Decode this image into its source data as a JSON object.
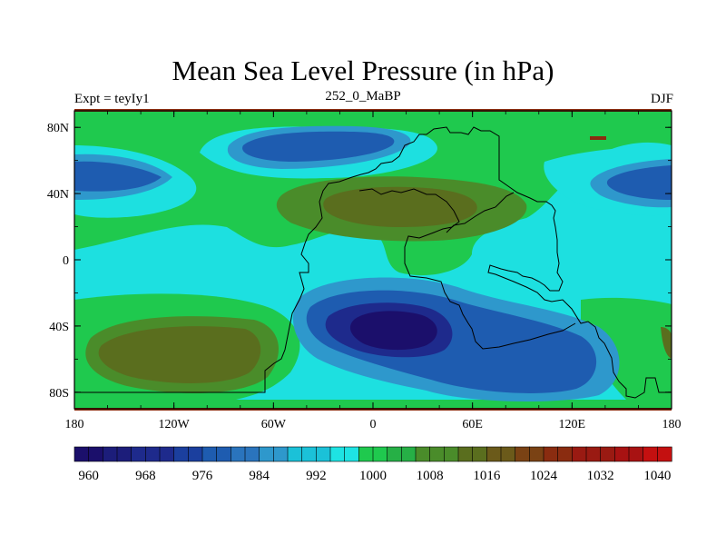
{
  "chart_data": {
    "type": "heatmap",
    "title": "Mean Sea Level Pressure (in hPa)",
    "subtitle_left": "Expt = teyIy1",
    "subtitle_center": "252_0_MaBP",
    "subtitle_right": "DJF",
    "xlabel": "",
    "ylabel": "",
    "xlim": [
      -180,
      180
    ],
    "ylim": [
      -90,
      90
    ],
    "x_ticks": [
      {
        "value": -180,
        "label": "180"
      },
      {
        "value": -120,
        "label": "120W"
      },
      {
        "value": -60,
        "label": "60W"
      },
      {
        "value": 0,
        "label": "0"
      },
      {
        "value": 60,
        "label": "60E"
      },
      {
        "value": 120,
        "label": "120E"
      },
      {
        "value": 180,
        "label": "180"
      }
    ],
    "y_ticks": [
      {
        "value": 80,
        "label": "80N"
      },
      {
        "value": 40,
        "label": "40N"
      },
      {
        "value": 0,
        "label": "0"
      },
      {
        "value": -40,
        "label": "40S"
      },
      {
        "value": -80,
        "label": "80S"
      }
    ],
    "colorbar": {
      "levels": [
        958,
        960,
        962,
        964,
        966,
        968,
        970,
        972,
        974,
        976,
        978,
        980,
        982,
        984,
        986,
        988,
        990,
        992,
        994,
        996,
        998,
        1000,
        1002,
        1004,
        1006,
        1008,
        1010,
        1012,
        1014,
        1016,
        1018,
        1020,
        1022,
        1024,
        1026,
        1028,
        1030,
        1032,
        1034,
        1036,
        1038,
        1040,
        1042
      ],
      "colors": [
        "#1b0f6b",
        "#1c1d7a",
        "#1e2a8c",
        "#1b3f9e",
        "#1e5cb0",
        "#2a74bd",
        "#2e98cc",
        "#1bc1d8",
        "#1ee3e3",
        "#1fc94e",
        "#26b046",
        "#4a8c2a",
        "#5a6e1e",
        "#6b5a1a",
        "#7a4214",
        "#8a2c10",
        "#9a1a12",
        "#a81212",
        "#c41010"
      ],
      "labels": [
        {
          "value": 960,
          "label": "960"
        },
        {
          "value": 968,
          "label": "968"
        },
        {
          "value": 976,
          "label": "976"
        },
        {
          "value": 984,
          "label": "984"
        },
        {
          "value": 992,
          "label": "992"
        },
        {
          "value": 1000,
          "label": "1000"
        },
        {
          "value": 1008,
          "label": "1008"
        },
        {
          "value": 1016,
          "label": "1016"
        },
        {
          "value": 1024,
          "label": "1024"
        },
        {
          "value": 1032,
          "label": "1032"
        },
        {
          "value": 1040,
          "label": "1040"
        }
      ]
    },
    "pressure_features": [
      {
        "name": "north-pacific-low",
        "lon": -168,
        "lat": 40,
        "value": 988
      },
      {
        "name": "north-panthalassa-low",
        "lon": -70,
        "lat": 62,
        "value": 988
      },
      {
        "name": "north-tethys-low",
        "lon": 168,
        "lat": 40,
        "value": 988
      },
      {
        "name": "pangea-north-high",
        "lon": 0,
        "lat": 33,
        "value": 1016
      },
      {
        "name": "panthalassa-south-high",
        "lon": -130,
        "lat": -52,
        "value": 1016
      },
      {
        "name": "southern-pangea-low",
        "lon": 0,
        "lat": -40,
        "value": 964
      },
      {
        "name": "southern-ocean-low",
        "lon": 80,
        "lat": -60,
        "value": 986
      }
    ]
  },
  "colors": {
    "background_field": "#1de0e0",
    "coastline": "#000000",
    "frame": "#000000"
  }
}
